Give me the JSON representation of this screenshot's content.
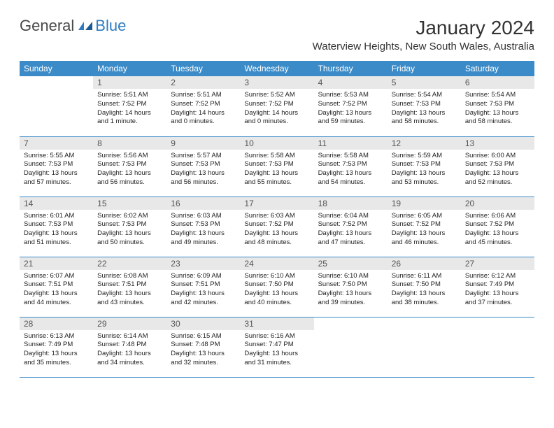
{
  "logo": {
    "part1": "General",
    "part2": "Blue"
  },
  "title": "January 2024",
  "location": "Waterview Heights, New South Wales, Australia",
  "colors": {
    "header_bg": "#3b8bc8",
    "header_text": "#ffffff",
    "daynum_bg": "#e8e8e8",
    "daynum_text": "#555555",
    "body_text": "#222222",
    "rule": "#3b8bc8",
    "logo_gray": "#4a4a4a",
    "logo_blue": "#2f7cc0"
  },
  "day_headers": [
    "Sunday",
    "Monday",
    "Tuesday",
    "Wednesday",
    "Thursday",
    "Friday",
    "Saturday"
  ],
  "weeks": [
    [
      null,
      {
        "n": "1",
        "sr": "Sunrise: 5:51 AM",
        "ss": "Sunset: 7:52 PM",
        "dl": "Daylight: 14 hours and 1 minute."
      },
      {
        "n": "2",
        "sr": "Sunrise: 5:51 AM",
        "ss": "Sunset: 7:52 PM",
        "dl": "Daylight: 14 hours and 0 minutes."
      },
      {
        "n": "3",
        "sr": "Sunrise: 5:52 AM",
        "ss": "Sunset: 7:52 PM",
        "dl": "Daylight: 14 hours and 0 minutes."
      },
      {
        "n": "4",
        "sr": "Sunrise: 5:53 AM",
        "ss": "Sunset: 7:52 PM",
        "dl": "Daylight: 13 hours and 59 minutes."
      },
      {
        "n": "5",
        "sr": "Sunrise: 5:54 AM",
        "ss": "Sunset: 7:53 PM",
        "dl": "Daylight: 13 hours and 58 minutes."
      },
      {
        "n": "6",
        "sr": "Sunrise: 5:54 AM",
        "ss": "Sunset: 7:53 PM",
        "dl": "Daylight: 13 hours and 58 minutes."
      }
    ],
    [
      {
        "n": "7",
        "sr": "Sunrise: 5:55 AM",
        "ss": "Sunset: 7:53 PM",
        "dl": "Daylight: 13 hours and 57 minutes."
      },
      {
        "n": "8",
        "sr": "Sunrise: 5:56 AM",
        "ss": "Sunset: 7:53 PM",
        "dl": "Daylight: 13 hours and 56 minutes."
      },
      {
        "n": "9",
        "sr": "Sunrise: 5:57 AM",
        "ss": "Sunset: 7:53 PM",
        "dl": "Daylight: 13 hours and 56 minutes."
      },
      {
        "n": "10",
        "sr": "Sunrise: 5:58 AM",
        "ss": "Sunset: 7:53 PM",
        "dl": "Daylight: 13 hours and 55 minutes."
      },
      {
        "n": "11",
        "sr": "Sunrise: 5:58 AM",
        "ss": "Sunset: 7:53 PM",
        "dl": "Daylight: 13 hours and 54 minutes."
      },
      {
        "n": "12",
        "sr": "Sunrise: 5:59 AM",
        "ss": "Sunset: 7:53 PM",
        "dl": "Daylight: 13 hours and 53 minutes."
      },
      {
        "n": "13",
        "sr": "Sunrise: 6:00 AM",
        "ss": "Sunset: 7:53 PM",
        "dl": "Daylight: 13 hours and 52 minutes."
      }
    ],
    [
      {
        "n": "14",
        "sr": "Sunrise: 6:01 AM",
        "ss": "Sunset: 7:53 PM",
        "dl": "Daylight: 13 hours and 51 minutes."
      },
      {
        "n": "15",
        "sr": "Sunrise: 6:02 AM",
        "ss": "Sunset: 7:53 PM",
        "dl": "Daylight: 13 hours and 50 minutes."
      },
      {
        "n": "16",
        "sr": "Sunrise: 6:03 AM",
        "ss": "Sunset: 7:53 PM",
        "dl": "Daylight: 13 hours and 49 minutes."
      },
      {
        "n": "17",
        "sr": "Sunrise: 6:03 AM",
        "ss": "Sunset: 7:52 PM",
        "dl": "Daylight: 13 hours and 48 minutes."
      },
      {
        "n": "18",
        "sr": "Sunrise: 6:04 AM",
        "ss": "Sunset: 7:52 PM",
        "dl": "Daylight: 13 hours and 47 minutes."
      },
      {
        "n": "19",
        "sr": "Sunrise: 6:05 AM",
        "ss": "Sunset: 7:52 PM",
        "dl": "Daylight: 13 hours and 46 minutes."
      },
      {
        "n": "20",
        "sr": "Sunrise: 6:06 AM",
        "ss": "Sunset: 7:52 PM",
        "dl": "Daylight: 13 hours and 45 minutes."
      }
    ],
    [
      {
        "n": "21",
        "sr": "Sunrise: 6:07 AM",
        "ss": "Sunset: 7:51 PM",
        "dl": "Daylight: 13 hours and 44 minutes."
      },
      {
        "n": "22",
        "sr": "Sunrise: 6:08 AM",
        "ss": "Sunset: 7:51 PM",
        "dl": "Daylight: 13 hours and 43 minutes."
      },
      {
        "n": "23",
        "sr": "Sunrise: 6:09 AM",
        "ss": "Sunset: 7:51 PM",
        "dl": "Daylight: 13 hours and 42 minutes."
      },
      {
        "n": "24",
        "sr": "Sunrise: 6:10 AM",
        "ss": "Sunset: 7:50 PM",
        "dl": "Daylight: 13 hours and 40 minutes."
      },
      {
        "n": "25",
        "sr": "Sunrise: 6:10 AM",
        "ss": "Sunset: 7:50 PM",
        "dl": "Daylight: 13 hours and 39 minutes."
      },
      {
        "n": "26",
        "sr": "Sunrise: 6:11 AM",
        "ss": "Sunset: 7:50 PM",
        "dl": "Daylight: 13 hours and 38 minutes."
      },
      {
        "n": "27",
        "sr": "Sunrise: 6:12 AM",
        "ss": "Sunset: 7:49 PM",
        "dl": "Daylight: 13 hours and 37 minutes."
      }
    ],
    [
      {
        "n": "28",
        "sr": "Sunrise: 6:13 AM",
        "ss": "Sunset: 7:49 PM",
        "dl": "Daylight: 13 hours and 35 minutes."
      },
      {
        "n": "29",
        "sr": "Sunrise: 6:14 AM",
        "ss": "Sunset: 7:48 PM",
        "dl": "Daylight: 13 hours and 34 minutes."
      },
      {
        "n": "30",
        "sr": "Sunrise: 6:15 AM",
        "ss": "Sunset: 7:48 PM",
        "dl": "Daylight: 13 hours and 32 minutes."
      },
      {
        "n": "31",
        "sr": "Sunrise: 6:16 AM",
        "ss": "Sunset: 7:47 PM",
        "dl": "Daylight: 13 hours and 31 minutes."
      },
      null,
      null,
      null
    ]
  ]
}
